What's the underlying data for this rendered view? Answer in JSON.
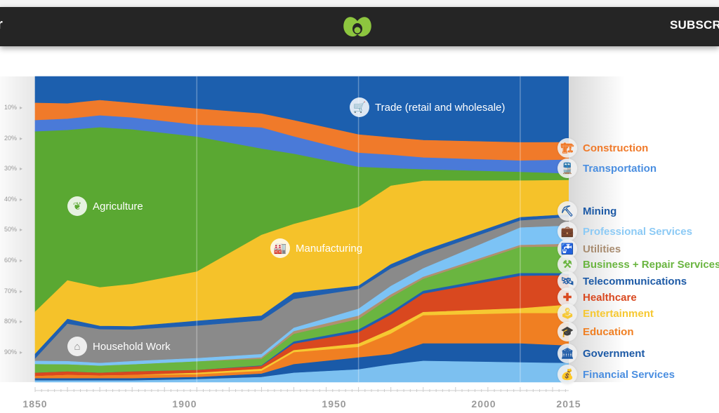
{
  "header": {
    "subscribe_label": "SUBSCRI",
    "logo_color": "#8dc63f"
  },
  "chart_data": {
    "type": "area",
    "stacked": true,
    "normalized": true,
    "title": "",
    "xlabel": "",
    "ylabel": "",
    "xlim": [
      1850,
      2015
    ],
    "ylim": [
      0,
      100
    ],
    "yticks": [
      "10%",
      "20%",
      "30%",
      "40%",
      "50%",
      "60%",
      "70%",
      "80%",
      "90%"
    ],
    "xticks": [
      "1850",
      "1900",
      "1950",
      "2000",
      "2015"
    ],
    "grid": "vertical at 1900, 1950, 2000",
    "legend": "right",
    "years": [
      1850,
      1860,
      1870,
      1880,
      1900,
      1920,
      1930,
      1950,
      1960,
      1970,
      2000,
      2015
    ],
    "series": [
      {
        "name": "Trade (retail and wholesale)",
        "color": "#1c5fae",
        "label_color": "#ffffff",
        "icon": "shopping-cart-icon",
        "glyph": "🛒",
        "values": [
          8.7,
          8.9,
          7.8,
          8.7,
          10.6,
          12.2,
          14.4,
          19.0,
          20.0,
          20.9,
          21.6,
          21.6
        ]
      },
      {
        "name": "Construction",
        "color": "#f07a2a",
        "label_color": "#f07a2a",
        "icon": "crane-icon",
        "glyph": "🏗",
        "values": [
          5.7,
          5.0,
          5.0,
          4.8,
          5.3,
          4.6,
          5.3,
          6.0,
          5.7,
          5.7,
          6.0,
          5.7
        ]
      },
      {
        "name": "Transportation",
        "color": "#4a7ad8",
        "label_color": "#4a8ee0",
        "icon": "train-icon",
        "glyph": "🚆",
        "values": [
          3.7,
          3.7,
          3.9,
          3.9,
          3.9,
          6.9,
          5.7,
          4.6,
          4.4,
          3.9,
          3.7,
          4.6
        ]
      },
      {
        "name": "Agriculture",
        "color": "#5aa832",
        "label_color": "#ffffff",
        "icon": "leaf-icon",
        "glyph": "❦",
        "values": [
          59.0,
          49.1,
          52.3,
          50.5,
          44.1,
          28.2,
          22.9,
          13.1,
          5.7,
          3.7,
          2.8,
          2.1
        ]
      },
      {
        "name": "Manufacturing",
        "color": "#f5c22a",
        "label_color": "#ffffff",
        "icon": "factory-icon",
        "glyph": "🏭",
        "values": [
          13.8,
          12.6,
          12.6,
          13.8,
          16.1,
          26.4,
          22.5,
          25.7,
          25.7,
          22.9,
          12.0,
          11.2
        ]
      },
      {
        "name": "Mining",
        "color": "#1f5fb0",
        "label_color": "#1d5aa6",
        "icon": "pickaxe-icon",
        "glyph": "⛏",
        "values": [
          1.6,
          1.6,
          1.1,
          1.1,
          1.6,
          1.6,
          2.1,
          1.1,
          1.4,
          1.4,
          1.1,
          0.9
        ]
      },
      {
        "name": "Household Work",
        "color": "#8a8a8a",
        "label_color": "#ffffff",
        "icon": "house-icon",
        "glyph": "⌂",
        "values": [
          0.7,
          12.2,
          11.0,
          10.3,
          10.6,
          11.0,
          9.4,
          6.4,
          5.7,
          4.4,
          2.3,
          2.8
        ]
      },
      {
        "name": "Professional Services",
        "color": "#7cc3f5",
        "label_color": "#8ccaf5",
        "icon": "briefcase-icon",
        "glyph": "💼",
        "values": [
          1.1,
          1.1,
          0.9,
          1.1,
          1.1,
          1.1,
          1.1,
          2.3,
          2.8,
          2.8,
          5.7,
          6.0
        ]
      },
      {
        "name": "Utilities",
        "color": "#b09070",
        "label_color": "#a88c70",
        "icon": "faucet-icon",
        "glyph": "🚰",
        "values": [
          0,
          0,
          0,
          0,
          0,
          0.5,
          0.9,
          1.1,
          0.9,
          0.7,
          0.7,
          0.9
        ]
      },
      {
        "name": "Business + Repair Services",
        "color": "#6ab540",
        "label_color": "#6ab540",
        "icon": "tools-icon",
        "glyph": "⚒",
        "values": [
          2.8,
          2.3,
          2.3,
          2.3,
          2.8,
          2.1,
          2.5,
          3.4,
          4.8,
          3.9,
          8.5,
          8.7
        ]
      },
      {
        "name": "Telecommunications",
        "color": "#1f5fb0",
        "label_color": "#1d5aa6",
        "icon": "satellite-icon",
        "glyph": "🛰",
        "values": [
          0,
          0,
          0,
          0,
          0,
          0.2,
          0.7,
          0.9,
          0.9,
          0.9,
          0.9,
          0.7
        ]
      },
      {
        "name": "Healthcare",
        "color": "#d9481f",
        "label_color": "#d9481f",
        "icon": "medical-cross-icon",
        "glyph": "✚",
        "values": [
          1.1,
          1.1,
          0.9,
          1.1,
          0.9,
          0.9,
          2.1,
          3.7,
          4.8,
          6.0,
          10.6,
          9.6
        ]
      },
      {
        "name": "Entertainment",
        "color": "#f6c832",
        "label_color": "#f6c832",
        "icon": "joystick-icon",
        "glyph": "🕹",
        "values": [
          0,
          0,
          0,
          0,
          0.5,
          0.7,
          0.7,
          1.1,
          1.4,
          1.1,
          1.6,
          2.8
        ]
      },
      {
        "name": "Education",
        "color": "#f07f22",
        "label_color": "#f07f22",
        "icon": "graduation-cap-icon",
        "glyph": "🎓",
        "values": [
          0.7,
          1.1,
          0.9,
          1.1,
          0.9,
          0.9,
          3.9,
          3.4,
          6.7,
          9.2,
          9.9,
          10.6
        ]
      },
      {
        "name": "Government",
        "color": "#1a5aa8",
        "label_color": "#1d5aa6",
        "icon": "government-building-icon",
        "glyph": "🏛",
        "values": [
          0.7,
          0.7,
          0.7,
          0.7,
          0.7,
          1.1,
          2.8,
          3.9,
          3.4,
          5.7,
          6.2,
          5.7
        ]
      },
      {
        "name": "Financial Services",
        "color": "#7cc0f0",
        "label_color": "#4a8ee0",
        "icon": "money-bag-icon",
        "glyph": "💰",
        "values": [
          0.5,
          0.5,
          0.5,
          0.5,
          0.9,
          1.6,
          3.0,
          4.1,
          5.7,
          6.9,
          6.4,
          6.2
        ]
      }
    ]
  }
}
